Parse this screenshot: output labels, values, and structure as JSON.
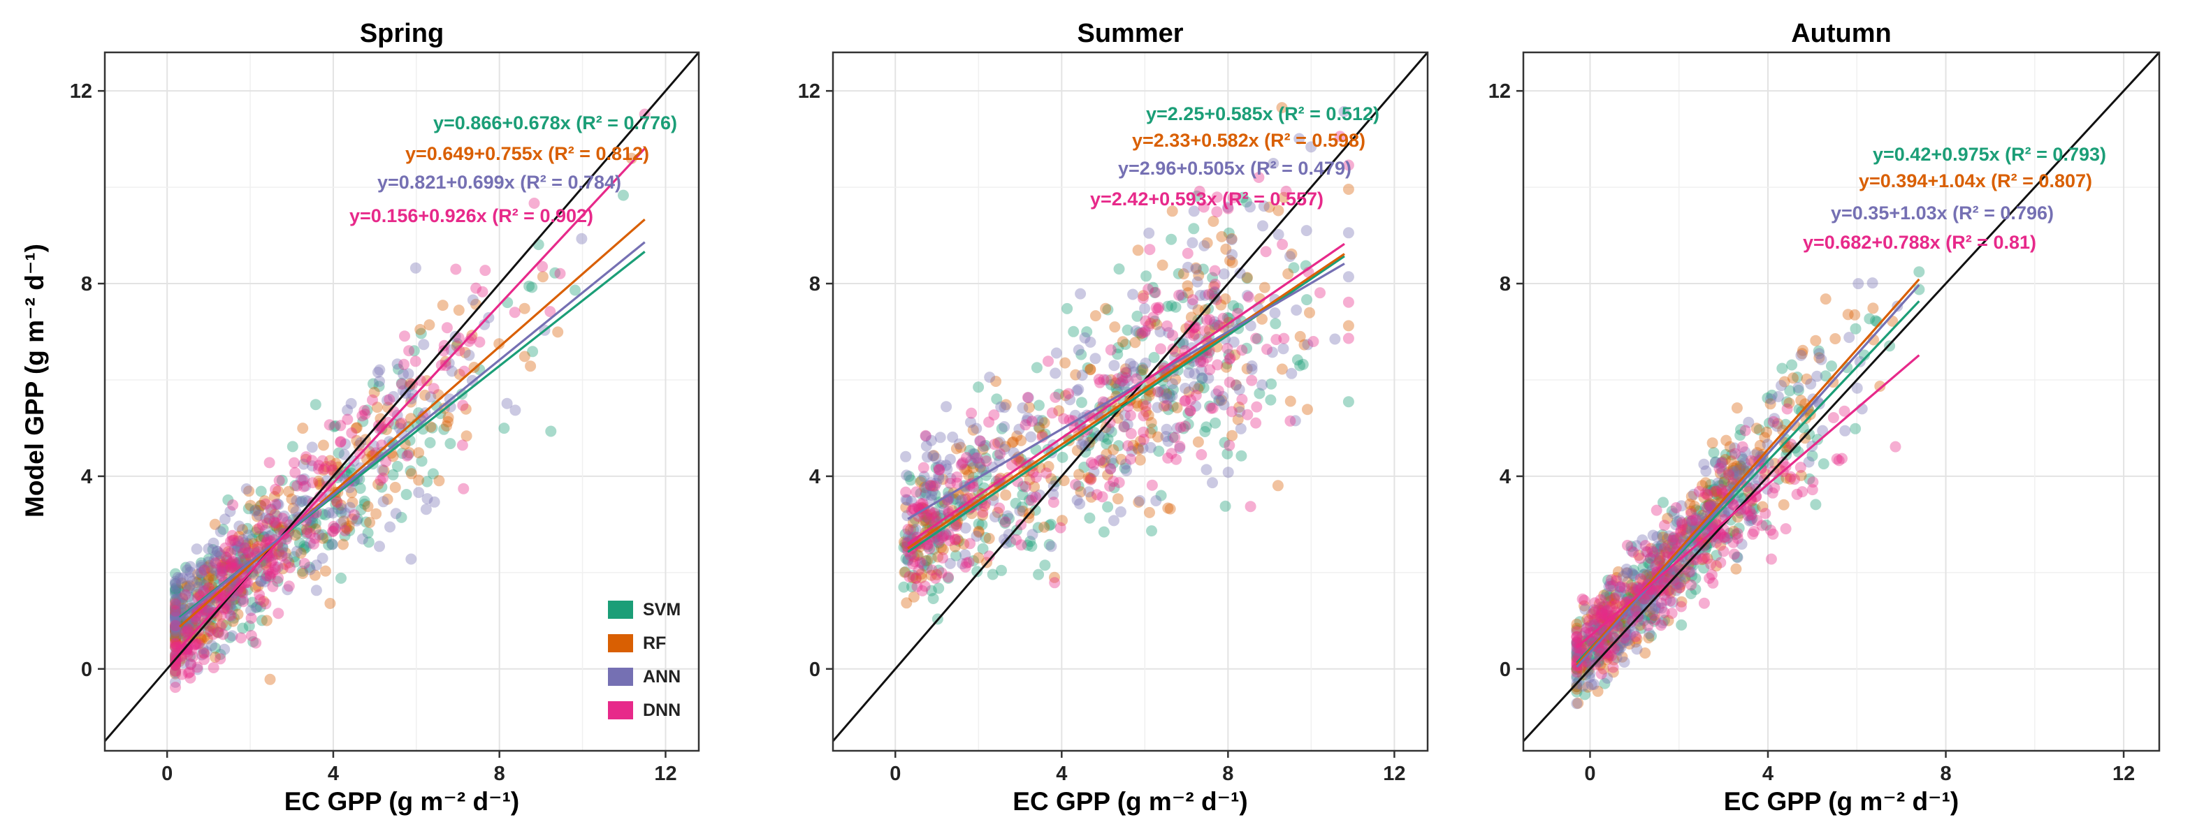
{
  "figure": {
    "y_axis_title": "Model GPP (g m⁻² d⁻¹)",
    "x_axis_title": "EC GPP (g m⁻² d⁻¹)"
  },
  "legend": [
    {
      "name": "SVM",
      "color": "#1b9e77"
    },
    {
      "name": "RF",
      "color": "#d95f02"
    },
    {
      "name": "ANN",
      "color": "#7570b3"
    },
    {
      "name": "DNN",
      "color": "#e7298a"
    }
  ],
  "chart_data": [
    {
      "type": "scatter",
      "title": "Spring",
      "xlabel": "EC GPP (g m⁻² d⁻¹)",
      "ylabel": "Model GPP (g m⁻² d⁻¹)",
      "xlim": [
        -1.5,
        12.8
      ],
      "ylim": [
        -1.7,
        12.8
      ],
      "xticks": [
        0,
        4,
        8,
        12
      ],
      "yticks": [
        0,
        4,
        8,
        12
      ],
      "one_to_one_line": true,
      "cloud": {
        "x_range": [
          0.2,
          11.5
        ],
        "x_mean": 3.2,
        "x_spread": 2.6,
        "noise": 0.9
      },
      "series": [
        {
          "name": "SVM",
          "intercept": 0.866,
          "slope": 0.678,
          "r2": 0.776,
          "fit_x": [
            0.3,
            11.5
          ],
          "equation": "y=0.866+0.678x (R² = 0.776)"
        },
        {
          "name": "RF",
          "intercept": 0.649,
          "slope": 0.755,
          "r2": 0.812,
          "fit_x": [
            0.3,
            11.5
          ],
          "equation": "y=0.649+0.755x (R² = 0.812)"
        },
        {
          "name": "ANN",
          "intercept": 0.821,
          "slope": 0.699,
          "r2": 0.784,
          "fit_x": [
            0.3,
            11.5
          ],
          "equation": "y=0.821+0.699x (R² = 0.784)"
        },
        {
          "name": "DNN",
          "intercept": 0.156,
          "slope": 0.926,
          "r2": 0.902,
          "fit_x": [
            0.3,
            11.5
          ],
          "equation": "y=0.156+0.926x (R² = 0.902)"
        }
      ]
    },
    {
      "type": "scatter",
      "title": "Summer",
      "xlabel": "EC GPP (g m⁻² d⁻¹)",
      "ylabel": "",
      "xlim": [
        -1.5,
        12.8
      ],
      "ylim": [
        -1.7,
        12.8
      ],
      "xticks": [
        0,
        4,
        8,
        12
      ],
      "yticks": [
        0,
        4,
        8,
        12
      ],
      "one_to_one_line": true,
      "cloud": {
        "x_range": [
          0.2,
          10.9
        ],
        "x_mean": 6.2,
        "x_spread": 2.0,
        "noise": 1.2
      },
      "series": [
        {
          "name": "SVM",
          "intercept": 2.25,
          "slope": 0.585,
          "r2": 0.512,
          "fit_x": [
            0.3,
            10.8
          ],
          "equation": "y=2.25+0.585x (R² = 0.512)"
        },
        {
          "name": "RF",
          "intercept": 2.33,
          "slope": 0.582,
          "r2": 0.598,
          "fit_x": [
            0.3,
            10.8
          ],
          "equation": "y=2.33+0.582x (R² = 0.598)"
        },
        {
          "name": "ANN",
          "intercept": 2.96,
          "slope": 0.505,
          "r2": 0.479,
          "fit_x": [
            0.3,
            10.8
          ],
          "equation": "y=2.96+0.505x (R² = 0.479)"
        },
        {
          "name": "DNN",
          "intercept": 2.42,
          "slope": 0.593,
          "r2": 0.557,
          "fit_x": [
            0.3,
            10.8
          ],
          "equation": "y=2.42+0.593x (R² = 0.557)"
        }
      ]
    },
    {
      "type": "scatter",
      "title": "Autumn",
      "xlabel": "EC GPP (g m⁻² d⁻¹)",
      "ylabel": "",
      "xlim": [
        -1.5,
        12.8
      ],
      "ylim": [
        -1.7,
        12.8
      ],
      "xticks": [
        0,
        4,
        8,
        12
      ],
      "yticks": [
        0,
        4,
        8,
        12
      ],
      "one_to_one_line": true,
      "cloud": {
        "x_range": [
          -0.3,
          7.4
        ],
        "x_mean": 2.6,
        "x_spread": 1.7,
        "noise": 0.75
      },
      "series": [
        {
          "name": "SVM",
          "intercept": 0.42,
          "slope": 0.975,
          "r2": 0.793,
          "fit_x": [
            -0.3,
            7.4
          ],
          "equation": "y=0.42+0.975x (R² = 0.793)"
        },
        {
          "name": "RF",
          "intercept": 0.394,
          "slope": 1.04,
          "r2": 0.807,
          "fit_x": [
            -0.3,
            7.4
          ],
          "equation": "y=0.394+1.04x (R² = 0.807)"
        },
        {
          "name": "ANN",
          "intercept": 0.35,
          "slope": 1.03,
          "r2": 0.796,
          "fit_x": [
            -0.3,
            7.4
          ],
          "equation": "y=0.35+1.03x (R² = 0.796)"
        },
        {
          "name": "DNN",
          "intercept": 0.682,
          "slope": 0.788,
          "r2": 0.81,
          "fit_x": [
            -0.3,
            7.4
          ],
          "equation": "y=0.682+0.788x (R² = 0.81)"
        }
      ]
    }
  ]
}
